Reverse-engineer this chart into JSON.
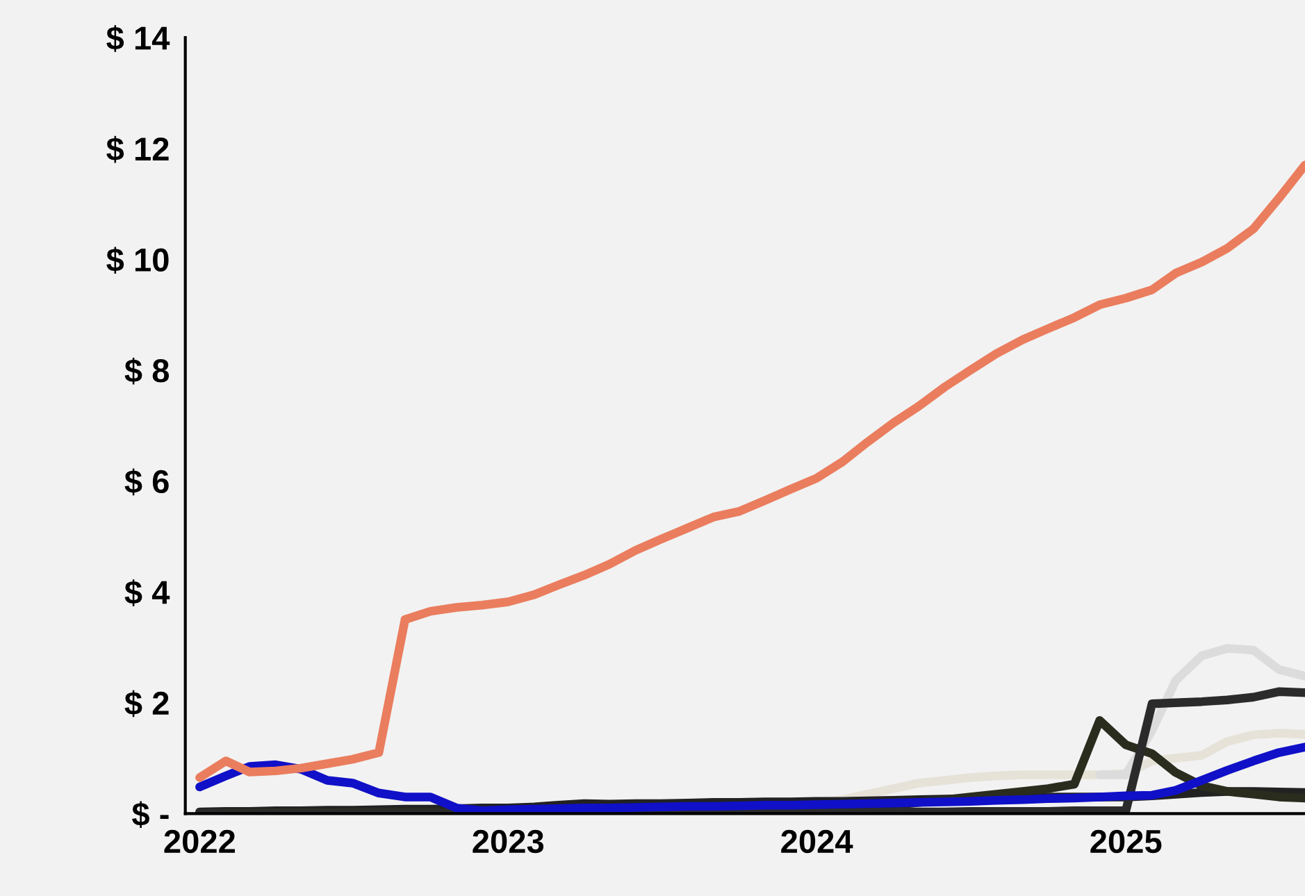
{
  "chart_data": {
    "type": "line",
    "x": [
      "2022-01",
      "2022-02",
      "2022-03",
      "2022-04",
      "2022-05",
      "2022-06",
      "2022-07",
      "2022-08",
      "2022-09",
      "2022-10",
      "2022-11",
      "2022-12",
      "2023-01",
      "2023-02",
      "2023-03",
      "2023-04",
      "2023-05",
      "2023-06",
      "2023-07",
      "2023-08",
      "2023-09",
      "2023-10",
      "2023-11",
      "2023-12",
      "2024-01",
      "2024-02",
      "2024-03",
      "2024-04",
      "2024-05",
      "2024-06",
      "2024-07",
      "2024-08",
      "2024-09",
      "2024-10",
      "2024-11",
      "2024-12",
      "2025-01",
      "2025-02",
      "2025-03",
      "2025-04",
      "2025-05",
      "2025-06",
      "2025-07",
      "2025-08"
    ],
    "series": [
      {
        "color": "#e6e2d8",
        "values": [
          null,
          null,
          null,
          null,
          null,
          null,
          null,
          null,
          null,
          null,
          null,
          null,
          null,
          null,
          null,
          null,
          null,
          null,
          null,
          null,
          null,
          null,
          0.15,
          0.18,
          0.2,
          0.25,
          0.35,
          0.45,
          0.55,
          0.6,
          0.65,
          0.68,
          0.7,
          0.7,
          0.7,
          0.7,
          0.72,
          0.95,
          1.0,
          1.05,
          1.3,
          1.42,
          1.45,
          1.43
        ]
      },
      {
        "color": "#dcdcdc",
        "values": [
          null,
          null,
          null,
          null,
          null,
          null,
          null,
          null,
          null,
          null,
          null,
          null,
          null,
          null,
          null,
          null,
          null,
          null,
          null,
          null,
          null,
          null,
          null,
          null,
          null,
          null,
          null,
          null,
          null,
          null,
          null,
          null,
          null,
          null,
          null,
          0.7,
          0.7,
          1.5,
          2.4,
          2.85,
          2.98,
          2.95,
          2.6,
          2.48
        ]
      },
      {
        "color": "#222222",
        "values": [
          0.03,
          0.04,
          0.04,
          0.05,
          0.05,
          0.06,
          0.06,
          0.07,
          0.08,
          0.08,
          0.09,
          0.1,
          0.1,
          0.12,
          0.15,
          0.18,
          0.17,
          0.18,
          0.18,
          0.19,
          0.2,
          0.2,
          0.21,
          0.21,
          0.22,
          0.22,
          0.23,
          0.24,
          0.25,
          0.26,
          0.27,
          0.28,
          0.29,
          0.3,
          0.3,
          0.3,
          0.3,
          0.32,
          0.35,
          0.38,
          0.4,
          0.4,
          0.39,
          0.38
        ]
      },
      {
        "color": "#2a2c1e",
        "values": [
          0.0,
          0.01,
          0.01,
          0.02,
          0.02,
          0.02,
          0.03,
          0.03,
          0.03,
          0.03,
          0.04,
          0.04,
          0.04,
          0.05,
          0.05,
          0.05,
          0.06,
          0.06,
          0.06,
          0.07,
          0.07,
          0.08,
          0.08,
          0.09,
          0.09,
          0.1,
          0.12,
          0.15,
          0.2,
          0.25,
          0.3,
          0.35,
          0.4,
          0.45,
          0.53,
          1.68,
          1.24,
          1.08,
          0.74,
          0.5,
          0.4,
          0.35,
          0.3,
          0.28
        ]
      },
      {
        "color": "#2b2b2b",
        "values": [
          0.0,
          0.0,
          0.0,
          0.0,
          0.0,
          0.0,
          0.0,
          0.0,
          0.0,
          0.0,
          0.0,
          0.0,
          0.01,
          0.01,
          0.01,
          0.01,
          0.01,
          0.01,
          0.02,
          0.02,
          0.02,
          0.02,
          0.02,
          0.02,
          0.03,
          0.03,
          0.03,
          0.03,
          0.03,
          0.03,
          0.04,
          0.04,
          0.04,
          0.04,
          0.05,
          0.05,
          0.05,
          1.98,
          2.0,
          2.02,
          2.05,
          2.1,
          2.2,
          2.18
        ]
      },
      {
        "color": "#1010c8",
        "values": [
          0.48,
          0.68,
          0.85,
          0.88,
          0.8,
          0.6,
          0.55,
          0.37,
          0.3,
          0.3,
          0.1,
          0.05,
          0.07,
          0.08,
          0.09,
          0.1,
          0.1,
          0.11,
          0.12,
          0.13,
          0.13,
          0.14,
          0.15,
          0.15,
          0.16,
          0.17,
          0.18,
          0.19,
          0.2,
          0.21,
          0.22,
          0.24,
          0.25,
          0.27,
          0.28,
          0.3,
          0.32,
          0.33,
          0.42,
          0.6,
          0.78,
          0.95,
          1.1,
          1.2
        ]
      },
      {
        "color": "#ea7d5e",
        "values": [
          0.65,
          0.95,
          0.75,
          0.77,
          0.82,
          0.9,
          0.98,
          1.1,
          3.5,
          3.65,
          3.72,
          3.76,
          3.82,
          3.95,
          4.12,
          4.3,
          4.5,
          4.75,
          4.95,
          5.15,
          5.35,
          5.45,
          5.65,
          5.85,
          6.05,
          6.35,
          6.7,
          7.05,
          7.35,
          7.7,
          8.0,
          8.3,
          8.55,
          8.75,
          8.95,
          9.18,
          9.3,
          9.45,
          9.75,
          9.95,
          10.2,
          10.55,
          11.1,
          11.7
        ]
      }
    ],
    "xlim": [
      "2021-12-15",
      "2025-08"
    ],
    "xticks": [
      {
        "value": "2022-01",
        "label": "2022"
      },
      {
        "value": "2023-01",
        "label": "2023"
      },
      {
        "value": "2024-01",
        "label": "2024"
      },
      {
        "value": "2025-01",
        "label": "2025"
      }
    ],
    "ylim": [
      0,
      14
    ],
    "yticks": [
      {
        "value": 0,
        "label": "$ -"
      },
      {
        "value": 2,
        "label": "$ 2"
      },
      {
        "value": 4,
        "label": "$ 4"
      },
      {
        "value": 6,
        "label": "$ 6"
      },
      {
        "value": 8,
        "label": "$ 8"
      },
      {
        "value": 10,
        "label": "$ 10"
      },
      {
        "value": 12,
        "label": "$ 12"
      },
      {
        "value": 14,
        "label": "$ 14"
      }
    ],
    "grid": false,
    "marker": "none",
    "line_style": "solid"
  }
}
